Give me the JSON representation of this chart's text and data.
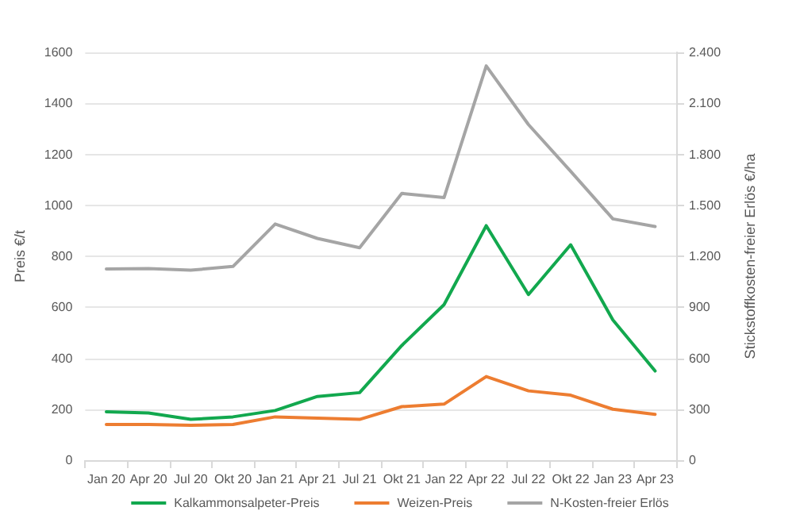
{
  "chart_data": {
    "type": "line",
    "xlabel": null,
    "ylabel": "Preis €/t",
    "y2label": "Stickstoffkosten-freier Erlös €/ha",
    "categories": [
      "Jan 20",
      "Apr 20",
      "Jul 20",
      "Okt 20",
      "Jan 21",
      "Apr 21",
      "Jul 21",
      "Okt 21",
      "Jan 22",
      "Apr 22",
      "Jul 22",
      "Okt 22",
      "Jan 23",
      "Apr 23"
    ],
    "series": [
      {
        "name": "Kalkammonsalpeter-Preis",
        "color": "#12a84e",
        "values": [
          190,
          185,
          160,
          170,
          195,
          250,
          265,
          450,
          610,
          920,
          650,
          845,
          550,
          350
        ]
      },
      {
        "name": "Weizen-Preis",
        "color": "#ed7d31",
        "values": [
          140,
          140,
          137,
          140,
          170,
          165,
          160,
          210,
          220,
          328,
          272,
          255,
          200,
          180
        ]
      },
      {
        "name": "N-Kosten-freier Erlös",
        "color": "#a5a5a5",
        "axis": "y2",
        "values": [
          1125,
          1128,
          1118,
          1140,
          1390,
          1305,
          1250,
          1570,
          1545,
          2320,
          1975,
          1700,
          1420,
          1375
        ]
      }
    ],
    "ylim": [
      0,
      1600
    ],
    "yticks": [
      0,
      200,
      400,
      600,
      800,
      1000,
      1200,
      1400,
      1600
    ],
    "y2lim": [
      0,
      2400
    ],
    "y2ticks": [
      0,
      300,
      600,
      900,
      {
        "value": 1200,
        "label": "1.200"
      },
      {
        "value": 1500,
        "label": "1.500"
      },
      {
        "value": 1800,
        "label": "1.800"
      },
      {
        "value": 2100,
        "label": "2.100"
      },
      {
        "value": 2400,
        "label": "2.400"
      }
    ],
    "grid": "y",
    "legend": "bottom",
    "marker": "none",
    "line_style": "solid"
  }
}
